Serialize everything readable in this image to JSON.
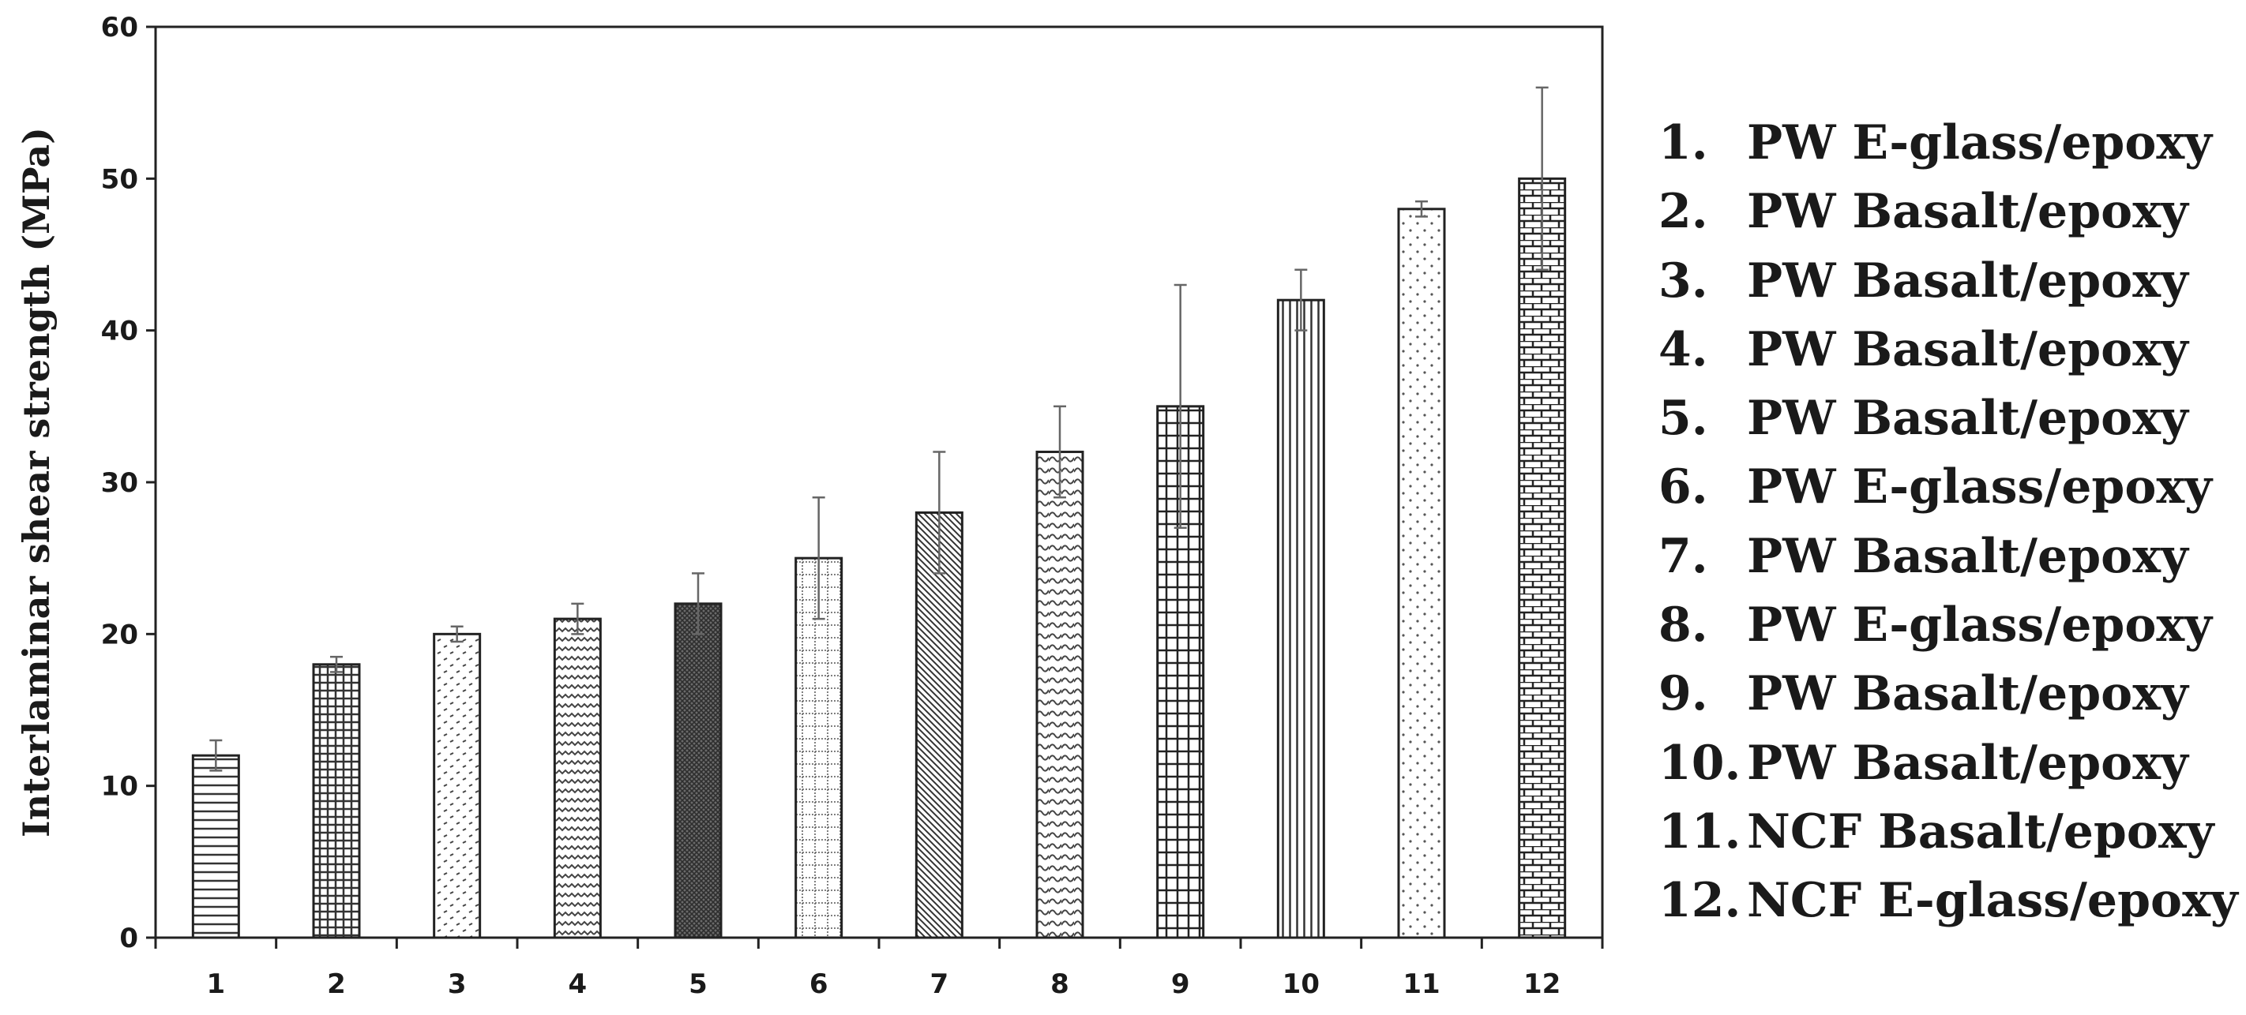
{
  "chart_data": {
    "type": "bar",
    "title": "",
    "xlabel": "",
    "ylabel": "Interlaminar shear strength (MPa)",
    "categories": [
      "1",
      "2",
      "3",
      "4",
      "5",
      "6",
      "7",
      "8",
      "9",
      "10",
      "11",
      "12"
    ],
    "values": [
      12,
      18,
      20,
      21,
      22,
      25,
      28,
      32,
      35,
      42,
      48,
      50
    ],
    "error_upper": [
      13,
      18.5,
      20.5,
      22,
      24,
      29,
      32,
      35,
      43,
      44,
      48.5,
      56
    ],
    "error_lower": [
      11,
      17.5,
      19.5,
      20,
      20,
      21,
      24,
      29,
      27,
      40,
      47.5,
      44
    ],
    "ylim": [
      0,
      60
    ],
    "yticks": [
      0,
      10,
      20,
      30,
      40,
      50,
      60
    ],
    "grid": false,
    "legend_position": "right",
    "patterns": [
      "horizontal-lines",
      "fine-grid",
      "dots-diagonal",
      "zigzag",
      "dense-dark",
      "dotted-grid",
      "diagonal-lines",
      "wave",
      "grid",
      "vertical-lines",
      "sparse-dots",
      "brick"
    ]
  },
  "legend": {
    "items": [
      {
        "num": "1.",
        "label": "PW E-glass/epoxy"
      },
      {
        "num": "2.",
        "label": "PW Basalt/epoxy"
      },
      {
        "num": "3.",
        "label": "PW Basalt/epoxy"
      },
      {
        "num": "4.",
        "label": "PW Basalt/epoxy"
      },
      {
        "num": "5.",
        "label": "PW Basalt/epoxy"
      },
      {
        "num": "6.",
        "label": "PW E-glass/epoxy"
      },
      {
        "num": "7.",
        "label": "PW Basalt/epoxy"
      },
      {
        "num": "8.",
        "label": "PW E-glass/epoxy"
      },
      {
        "num": "9.",
        "label": "PW Basalt/epoxy"
      },
      {
        "num": "10.",
        "label": "PW Basalt/epoxy"
      },
      {
        "num": "11.",
        "label": "NCF Basalt/epoxy"
      },
      {
        "num": "12.",
        "label": "NCF E-glass/epoxy"
      }
    ]
  }
}
